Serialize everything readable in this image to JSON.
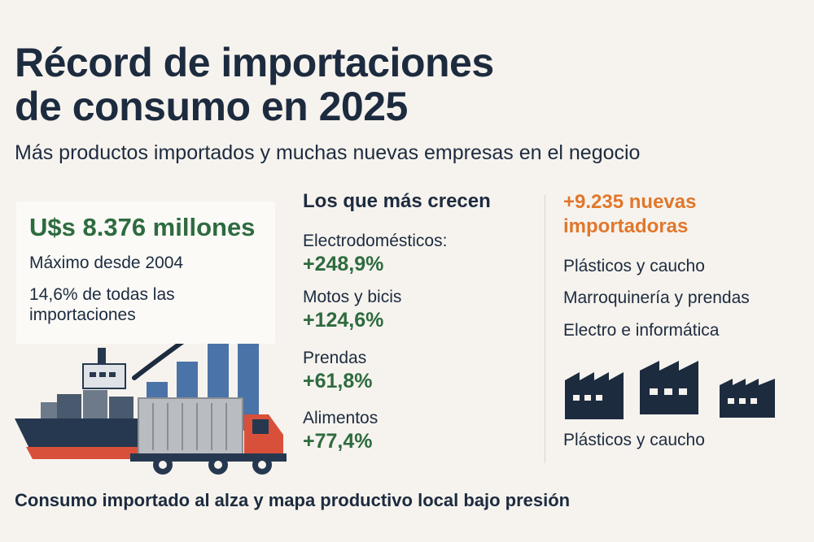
{
  "header": {
    "title_line1": "Récord de importaciones",
    "title_line2": "de consumo en 2025",
    "subtitle": "Más productos importados y muchas nuevas empresas en el negocio"
  },
  "highlight": {
    "value": "U$s 8.376 millones",
    "line1": "Máximo desde 2004",
    "line2": "14,6% de todas las importaciones"
  },
  "growth": {
    "heading": "Los que más crecen",
    "items": [
      {
        "label": "Electrodomésticos:",
        "value": "+248,9%"
      },
      {
        "label": "Motos y bicis",
        "value": "+124,6%"
      },
      {
        "label": "Prendas",
        "value": "+61,8%"
      },
      {
        "label": "Alimentos",
        "value": "+77,4%"
      }
    ]
  },
  "importers": {
    "heading": "+9.235 nuevas importadoras",
    "sectors": [
      "Plásticos y caucho",
      "Marroquinería y prendas",
      "Electro e informática"
    ],
    "footer_sector": "Plásticos y caucho"
  },
  "footer": {
    "text": "Consumo importado al alza y mapa productivo local bajo presión"
  },
  "colors": {
    "navy": "#1d2b3f",
    "green": "#2e6b3f",
    "orange": "#e0772c",
    "bar_blue": "#4a73a8",
    "truck_red": "#d9503a"
  },
  "icons": {
    "ship": "cargo-ship-icon",
    "truck": "truck-icon",
    "arrow": "trend-arrow-icon",
    "factory": "factory-icon"
  }
}
